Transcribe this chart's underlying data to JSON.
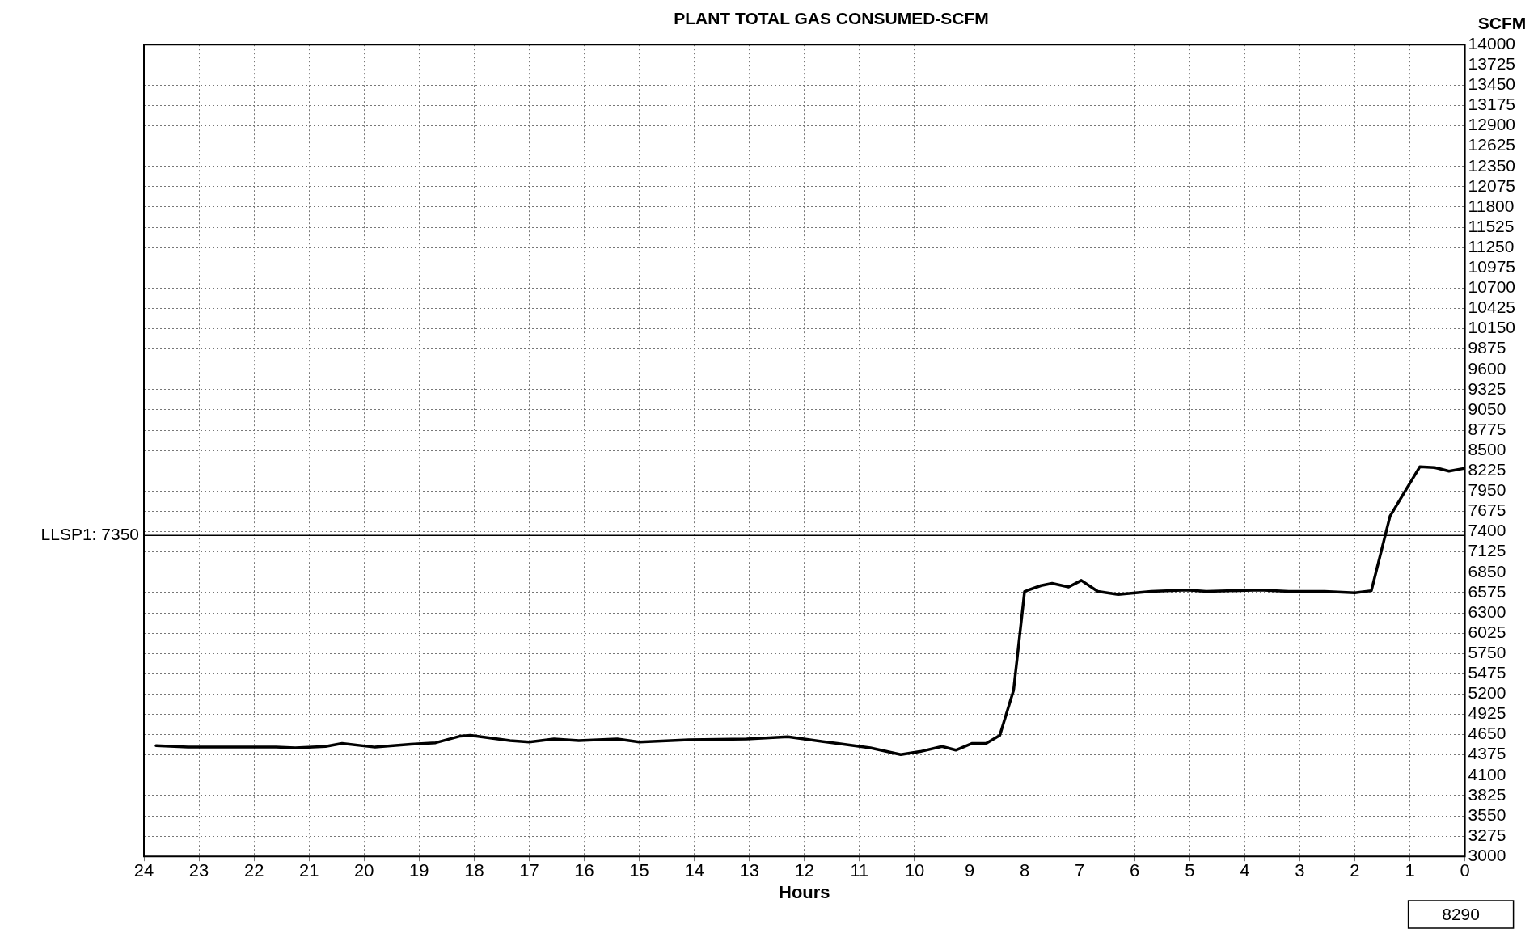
{
  "chart_data": {
    "type": "line",
    "title": "PLANT TOTAL GAS CONSUMED-SCFM",
    "xlabel": "Hours",
    "ylabel": "SCFM",
    "x": [
      23.78,
      23.2,
      21.6,
      21.25,
      20.7,
      20.4,
      19.8,
      19.15,
      18.7,
      18.25,
      18.07,
      17.35,
      17.0,
      16.55,
      16.1,
      15.4,
      15.0,
      14.1,
      13.05,
      12.3,
      11.4,
      10.8,
      10.25,
      9.9,
      9.5,
      9.25,
      8.96,
      8.7,
      8.45,
      8.2,
      8.0,
      7.7,
      7.5,
      7.2,
      6.97,
      6.67,
      6.3,
      5.7,
      5.05,
      4.7,
      3.72,
      3.2,
      2.55,
      2.0,
      1.7,
      1.36,
      0.82,
      0.55,
      0.29,
      0
    ],
    "series": [
      {
        "color": "#000000",
        "values": [
          4500,
          4480,
          4480,
          4470,
          4490,
          4530,
          4480,
          4520,
          4540,
          4630,
          4640,
          4570,
          4550,
          4590,
          4570,
          4590,
          4550,
          4580,
          4590,
          4620,
          4530,
          4470,
          4380,
          4420,
          4490,
          4440,
          4530,
          4530,
          4640,
          5250,
          6590,
          6670,
          6700,
          6650,
          6740,
          6590,
          6550,
          6590,
          6610,
          6590,
          6610,
          6590,
          6590,
          6570,
          6600,
          7610,
          8280,
          8270,
          8220,
          8260
        ]
      }
    ],
    "xlim": [
      24,
      0
    ],
    "xticks": [
      24,
      23,
      22,
      21,
      20,
      19,
      18,
      17,
      16,
      15,
      14,
      13,
      12,
      11,
      10,
      9,
      8,
      7,
      6,
      5,
      4,
      3,
      2,
      1,
      0
    ],
    "ylim": [
      3000,
      14000
    ],
    "yticks": [
      3000,
      3275,
      3550,
      3825,
      4100,
      4375,
      4650,
      4925,
      5200,
      5475,
      5750,
      6025,
      6300,
      6575,
      6850,
      7125,
      7400,
      7675,
      7950,
      8225,
      8500,
      8775,
      9050,
      9325,
      9600,
      9875,
      10150,
      10425,
      10700,
      10975,
      11250,
      11525,
      11800,
      12075,
      12350,
      12625,
      12900,
      13175,
      13450,
      13725,
      14000
    ],
    "ref_lines": [
      {
        "axis": "y",
        "value": 7350,
        "label": "LLSP1: 7350",
        "color": "#000000"
      }
    ],
    "annotations": [
      "8290"
    ],
    "grid": true,
    "legend": false,
    "marker": "none",
    "line_style": "solid"
  }
}
